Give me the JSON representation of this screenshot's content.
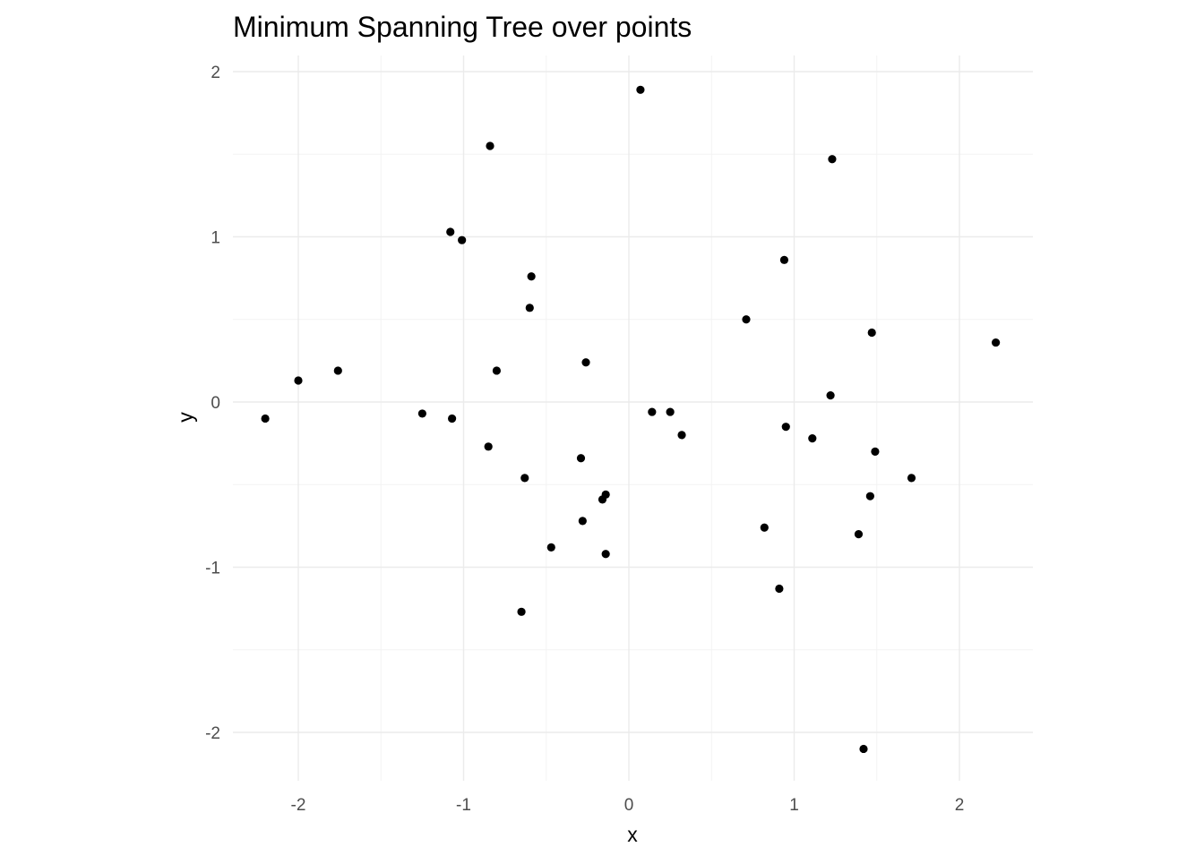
{
  "chart_data": {
    "type": "scatter",
    "title": "Minimum Spanning Tree over points",
    "xlabel": "x",
    "ylabel": "y",
    "xlim": [
      -2.45,
      2.45
    ],
    "ylim": [
      -2.3,
      2.1
    ],
    "x_ticks": [
      -2,
      -1,
      0,
      1,
      2
    ],
    "x_tick_labels": [
      "-2",
      "-1",
      "0",
      "1",
      "2"
    ],
    "y_ticks": [
      -2,
      -1,
      0,
      1,
      2
    ],
    "y_tick_labels": [
      "-2",
      "-1",
      "0",
      "1",
      "2"
    ],
    "grid": true,
    "legend": "none",
    "colors": {
      "point": "#000000",
      "grid_major": "#ebebeb",
      "grid_minor": "#f3f3f3",
      "background": "#ffffff"
    },
    "points": [
      {
        "x": 0.07,
        "y": 1.89
      },
      {
        "x": -0.84,
        "y": 1.55
      },
      {
        "x": 1.23,
        "y": 1.47
      },
      {
        "x": -1.08,
        "y": 1.03
      },
      {
        "x": -1.01,
        "y": 0.98
      },
      {
        "x": 0.94,
        "y": 0.86
      },
      {
        "x": -0.59,
        "y": 0.76
      },
      {
        "x": -0.6,
        "y": 0.57
      },
      {
        "x": 0.71,
        "y": 0.5
      },
      {
        "x": 1.47,
        "y": 0.42
      },
      {
        "x": 2.22,
        "y": 0.36
      },
      {
        "x": -0.26,
        "y": 0.24
      },
      {
        "x": -1.76,
        "y": 0.19
      },
      {
        "x": -0.8,
        "y": 0.19
      },
      {
        "x": -2.0,
        "y": 0.13
      },
      {
        "x": 1.22,
        "y": 0.04
      },
      {
        "x": 0.14,
        "y": -0.06
      },
      {
        "x": 0.25,
        "y": -0.06
      },
      {
        "x": -1.25,
        "y": -0.07
      },
      {
        "x": -2.2,
        "y": -0.1
      },
      {
        "x": -1.07,
        "y": -0.1
      },
      {
        "x": 0.95,
        "y": -0.15
      },
      {
        "x": 0.32,
        "y": -0.2
      },
      {
        "x": 1.11,
        "y": -0.22
      },
      {
        "x": -0.85,
        "y": -0.27
      },
      {
        "x": 1.49,
        "y": -0.3
      },
      {
        "x": -0.29,
        "y": -0.34
      },
      {
        "x": -0.63,
        "y": -0.46
      },
      {
        "x": 1.71,
        "y": -0.46
      },
      {
        "x": -0.14,
        "y": -0.56
      },
      {
        "x": 1.46,
        "y": -0.57
      },
      {
        "x": -0.16,
        "y": -0.59
      },
      {
        "x": -0.28,
        "y": -0.72
      },
      {
        "x": 0.82,
        "y": -0.76
      },
      {
        "x": 1.39,
        "y": -0.8
      },
      {
        "x": -0.47,
        "y": -0.88
      },
      {
        "x": -0.14,
        "y": -0.92
      },
      {
        "x": 0.91,
        "y": -1.13
      },
      {
        "x": -0.65,
        "y": -1.27
      },
      {
        "x": 1.42,
        "y": -2.1
      }
    ]
  }
}
